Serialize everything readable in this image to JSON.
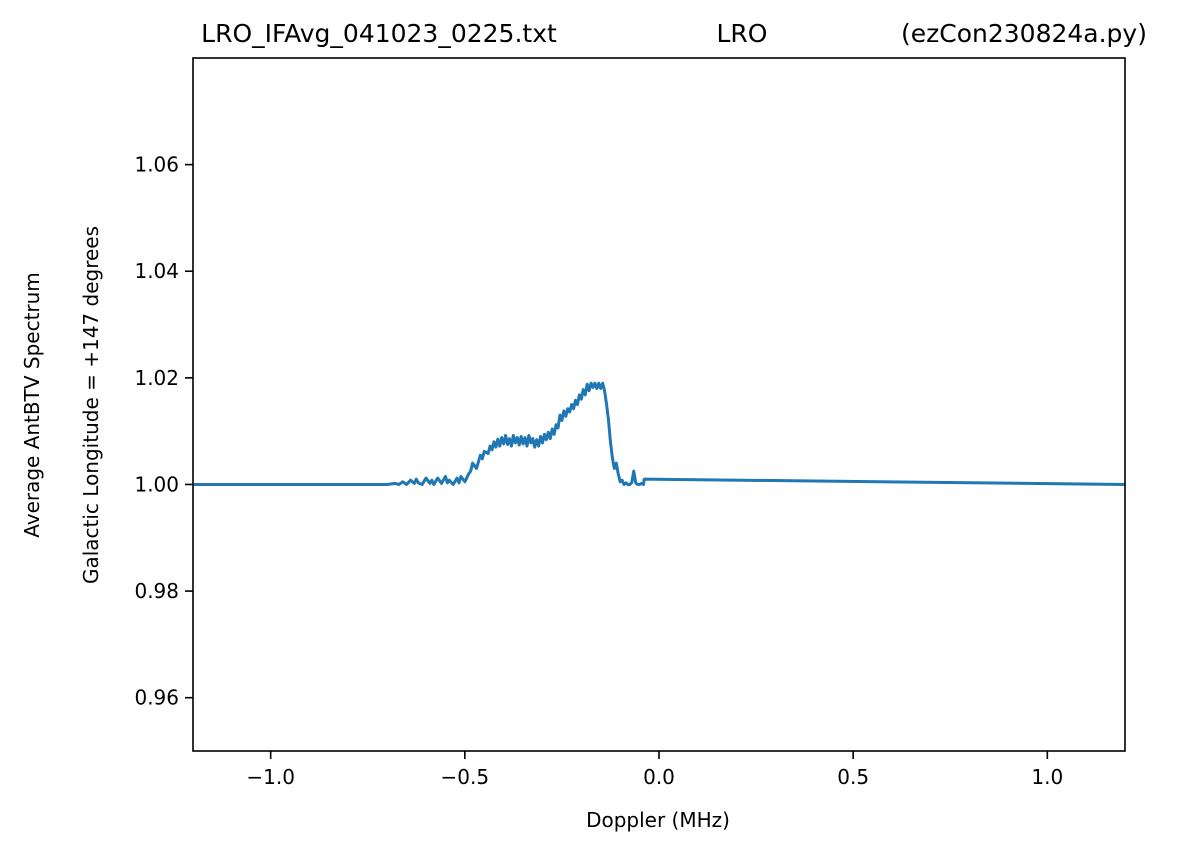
{
  "title": {
    "left": "LRO_IFAvg_041023_0225.txt",
    "center": "LRO",
    "right": "(ezCon230824a.py)"
  },
  "chart_data": {
    "type": "line",
    "xlabel": "Doppler (MHz)",
    "ylabel_line1": "Average AntBTV Spectrum",
    "ylabel_line2": "Galactic Longitude = +147 degrees",
    "xlim": [
      -1.2,
      1.2
    ],
    "ylim": [
      0.95,
      1.08
    ],
    "xticks": [
      {
        "value": -1.0,
        "label": "−1.0"
      },
      {
        "value": -0.5,
        "label": "−0.5"
      },
      {
        "value": 0.0,
        "label": "0.0"
      },
      {
        "value": 0.5,
        "label": "0.5"
      },
      {
        "value": 1.0,
        "label": "1.0"
      }
    ],
    "yticks": [
      {
        "value": 0.96,
        "label": "0.96"
      },
      {
        "value": 0.98,
        "label": "0.98"
      },
      {
        "value": 1.0,
        "label": "1.00"
      },
      {
        "value": 1.02,
        "label": "1.02"
      },
      {
        "value": 1.04,
        "label": "1.04"
      },
      {
        "value": 1.06,
        "label": "1.06"
      }
    ],
    "grid": false,
    "series": [
      {
        "color": "#1f77b4",
        "x": [
          -1.2,
          -0.7,
          -0.68,
          -0.67,
          -0.66,
          -0.65,
          -0.64,
          -0.63,
          -0.625,
          -0.62,
          -0.61,
          -0.6,
          -0.59,
          -0.585,
          -0.58,
          -0.57,
          -0.56,
          -0.55,
          -0.545,
          -0.54,
          -0.53,
          -0.52,
          -0.515,
          -0.51,
          -0.5,
          -0.49,
          -0.485,
          -0.48,
          -0.47,
          -0.46,
          -0.455,
          -0.45,
          -0.44,
          -0.435,
          -0.43,
          -0.425,
          -0.42,
          -0.415,
          -0.41,
          -0.405,
          -0.4,
          -0.395,
          -0.39,
          -0.385,
          -0.38,
          -0.375,
          -0.37,
          -0.365,
          -0.36,
          -0.355,
          -0.35,
          -0.345,
          -0.34,
          -0.335,
          -0.33,
          -0.325,
          -0.32,
          -0.315,
          -0.31,
          -0.305,
          -0.3,
          -0.295,
          -0.29,
          -0.285,
          -0.28,
          -0.275,
          -0.27,
          -0.265,
          -0.26,
          -0.255,
          -0.25,
          -0.245,
          -0.24,
          -0.235,
          -0.23,
          -0.225,
          -0.22,
          -0.215,
          -0.21,
          -0.205,
          -0.2,
          -0.195,
          -0.19,
          -0.185,
          -0.18,
          -0.175,
          -0.17,
          -0.165,
          -0.16,
          -0.155,
          -0.15,
          -0.145,
          -0.14,
          -0.135,
          -0.13,
          -0.125,
          -0.12,
          -0.115,
          -0.11,
          -0.105,
          -0.1,
          -0.095,
          -0.09,
          -0.085,
          -0.08,
          -0.075,
          -0.07,
          -0.065,
          -0.06,
          -0.055,
          -0.05,
          -0.045,
          -0.04,
          -0.038,
          1.2
        ],
        "y": [
          1.0,
          1.0,
          1.0002,
          1.0,
          1.0005,
          1.0,
          1.0008,
          1.0002,
          1.001,
          1.0003,
          1.0,
          1.0012,
          1.0002,
          1.0008,
          1.0,
          1.0012,
          1.0002,
          1.0015,
          1.0003,
          1.0008,
          1.0,
          1.0012,
          1.0003,
          1.0015,
          1.0005,
          1.002,
          1.0025,
          1.004,
          1.003,
          1.0055,
          1.0048,
          1.0062,
          1.0058,
          1.0072,
          1.0065,
          1.008,
          1.007,
          1.0085,
          1.0072,
          1.0088,
          1.0076,
          1.0092,
          1.0075,
          1.0086,
          1.0072,
          1.0092,
          1.0078,
          1.0088,
          1.0074,
          1.009,
          1.0076,
          1.0088,
          1.0072,
          1.0092,
          1.0078,
          1.0086,
          1.007,
          1.0084,
          1.0072,
          1.009,
          1.0078,
          1.0094,
          1.0084,
          1.0098,
          1.0086,
          1.0104,
          1.0094,
          1.0112,
          1.0106,
          1.013,
          1.012,
          1.0138,
          1.0128,
          1.0142,
          1.0136,
          1.015,
          1.0142,
          1.0158,
          1.015,
          1.0168,
          1.016,
          1.0178,
          1.0168,
          1.0188,
          1.0176,
          1.019,
          1.0182,
          1.019,
          1.018,
          1.019,
          1.018,
          1.019,
          1.0175,
          1.015,
          1.012,
          1.008,
          1.005,
          1.003,
          1.004,
          1.002,
          1.0005,
          1.0008,
          1.0,
          1.0003,
          1.0,
          1.0,
          1.0004,
          1.0025,
          1.0003,
          1.0,
          1.0,
          1.0002,
          1.0,
          1.001,
          1.0
        ]
      }
    ]
  }
}
